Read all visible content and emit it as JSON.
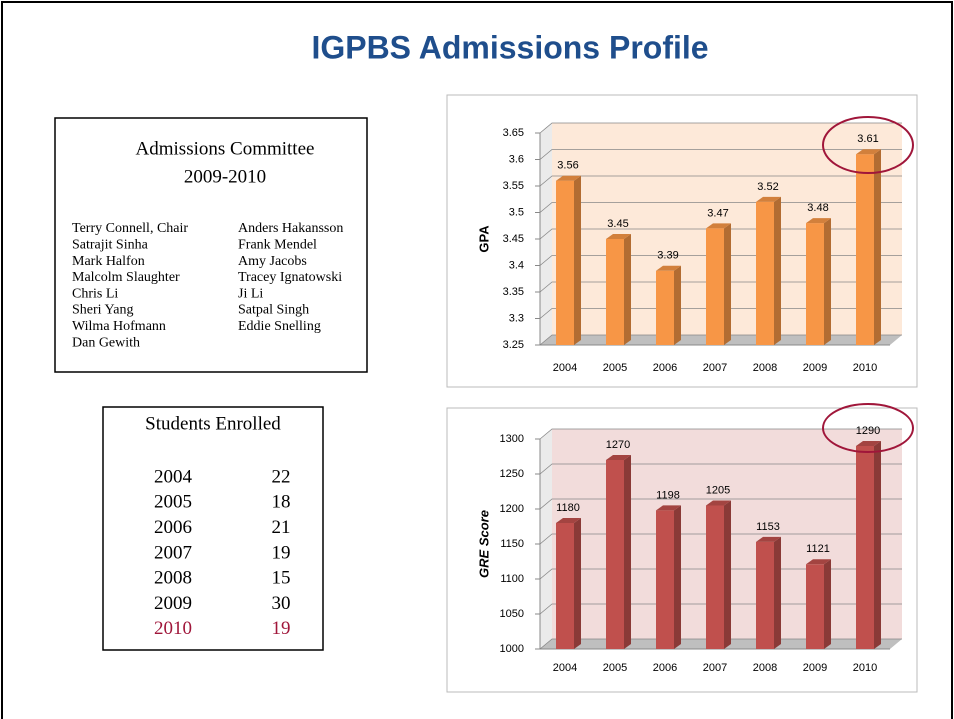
{
  "header": {
    "title": "IGPBS Admissions Profile"
  },
  "committee": {
    "title": "Admissions Committee",
    "years": "2009-2010",
    "column1": [
      "Terry Connell, Chair",
      "Satrajit Sinha",
      "Mark Halfon",
      "Malcolm Slaughter",
      "Chris Li",
      "Sheri Yang",
      "Wilma Hofmann",
      "Dan Gewith"
    ],
    "column2": [
      "Anders Hakansson",
      "Frank Mendel",
      "Amy Jacobs",
      "Tracey Ignatowski",
      "Ji Li",
      "Satpal Singh",
      "Eddie Snelling"
    ]
  },
  "enrolled": {
    "title": "Students Enrolled",
    "rows": [
      [
        2004,
        22
      ],
      [
        2005,
        18
      ],
      [
        2006,
        21
      ],
      [
        2007,
        19
      ],
      [
        2008,
        15
      ],
      [
        2009,
        30
      ],
      [
        2010,
        19
      ]
    ]
  },
  "chart_data": [
    {
      "type": "bar3d",
      "ylabel": "GPA",
      "categories": [
        "2004",
        "2005",
        "2006",
        "2007",
        "2008",
        "2009",
        "2010"
      ],
      "values": [
        3.56,
        3.45,
        3.39,
        3.47,
        3.52,
        3.48,
        3.61
      ],
      "color": "#f79646",
      "ylim": [
        3.25,
        3.65
      ],
      "yticks": [
        3.25,
        3.3,
        3.35,
        3.4,
        3.45,
        3.5,
        3.55,
        3.6,
        3.65
      ],
      "grid": true
    },
    {
      "type": "bar3d",
      "ylabel": "GRE Score",
      "categories": [
        "2004",
        "2005",
        "2006",
        "2007",
        "2008",
        "2009",
        "2010"
      ],
      "values": [
        1180,
        1270,
        1198,
        1205,
        1153,
        1121,
        1290
      ],
      "color": "#c0504d",
      "ylim": [
        1000,
        1300
      ],
      "yticks": [
        1000,
        1050,
        1100,
        1150,
        1200,
        1250,
        1300
      ],
      "grid": true
    }
  ]
}
